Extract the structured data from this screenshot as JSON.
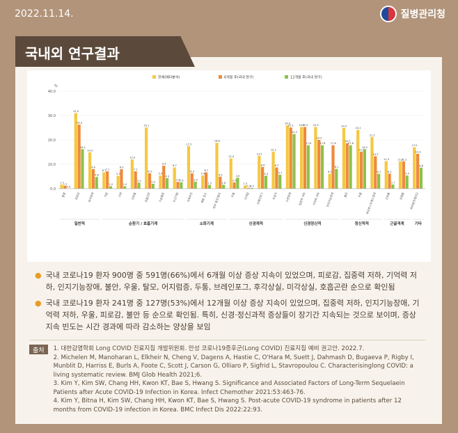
{
  "header": {
    "date": "2022.11.14.",
    "org": "질병관리청"
  },
  "title": "국내외 연구결과",
  "chart_data": {
    "type": "bar",
    "ylabel": "%",
    "ylim": [
      0,
      40
    ],
    "yticks": [
      "0.0",
      "10.0",
      "20.0",
      "30.0",
      "40.0"
    ],
    "legend": [
      "전체(메타분석)",
      "6개월 후(국내 연구)",
      "12개월 후(국내 연구)"
    ],
    "colors": [
      "#f5c842",
      "#ee8a3a",
      "#8bc34a"
    ],
    "categories": [
      "발열",
      "피로감",
      "미각장애",
      "기침",
      "가래",
      "인후통",
      "호흡곤란",
      "가슴통증",
      "두근거림",
      "식욕부진",
      "체중 감소",
      "피부 발진/탈모",
      "두통",
      "어지럼",
      "브레인포그",
      "무감각",
      "수면장애",
      "집중력 저하",
      "기억력 저하",
      "인지기능장애",
      "불안",
      "우울",
      "외상후스트레스장애",
      "근육통",
      "관절통",
      "피부발진/탈모2"
    ],
    "series": [
      {
        "name": "전체(메타분석)",
        "values": [
          1.7,
          31.0,
          14.9,
          6.7,
          5.3,
          12.0,
          25.1,
          5.4,
          8.7,
          17.5,
          5.4,
          18.8,
          12.4,
          1.3,
          13.5,
          15.2,
          26.0,
          25.3,
          25.3,
          6.1,
          24.9,
          24.1,
          21.2,
          11.3,
          11.2,
          17.0
        ]
      },
      {
        "name": "6개월 후(국내 연구)",
        "values": [
          1.2,
          26.3,
          8.0,
          7.1,
          8.0,
          7.1,
          6.3,
          9.4,
          2.8,
          6.3,
          6.7,
          4.9,
          2.6,
          0.3,
          8.9,
          8.7,
          25.1,
          25.3,
          20.0,
          17.8,
          18.7,
          15.2,
          13.3,
          6.2,
          11.2,
          14.3
        ]
      },
      {
        "name": "12개월 후(국내 연구)",
        "values": [
          0.0,
          16.2,
          4.8,
          1.0,
          1.0,
          2.5,
          2.0,
          4.3,
          2.6,
          2.9,
          1.5,
          1.6,
          4.5,
          0.3,
          5.3,
          5.7,
          22.4,
          17.8,
          17.8,
          8.1,
          17.8,
          16.2,
          6.1,
          1.7,
          5.4,
          8.6
        ]
      }
    ],
    "groups": [
      "일반적",
      "순환기 / 호흡기계",
      "소화기계",
      "신경계적",
      "신경정신적",
      "정신적적",
      "근골격계",
      "기타"
    ]
  },
  "bullets": [
    "국내 코로나19 환자 900명 중 591명(66%)에서 6개월 이상 증상 지속이 있었으며, 피로감, 집중력 저하, 기억력 저하, 인지기능장애, 불안, 우울, 탈모, 어지럼증, 두통, 브레인포그, 후각상실, 미각상실, 호흡곤란 순으로 확인됨",
    "국내 코로나19 환자 241명 중 127명(53%)에서 12개월 이상 증상 지속이 있었으며, 집중력 저하, 인지기능장애, 기억력 저하, 우울, 피로감, 불안 등 순으로 확인됨. 특히, 신경·정신과적 증상들이 장기간 지속되는 것으로 보이며, 증상 지속 빈도는 시간 경과에 따라 감소하는 양상을 보임"
  ],
  "refs": {
    "label": "출처",
    "items": [
      "1. 대한감염학회 Long COVID 진료지침 개발위원회. 만성 코로나19증후군(Long COVID) 진료지침 예비 권고안. 2022.7.",
      "2. Michelen M, Manoharan L, Elkheir N, Cheng V, Dagens A, Hastie C, O'Hara M, Suett J, Dahmash D, Bugaeva P, Rigby I, Munblit D, Harriss E, Burls A, Foote C, Scott J, Carson G, Olliaro P, Sigfrid L, Stavropoulou C. Characterisinglong COVID: a living systematic review. BMJ Glob Health 2021;6.",
      "3. Kim Y, Kim SW, Chang HH, Kwon KT, Bae S, Hwang S. Significance and Associated Factors of Long-Term Sequelaein Patients after Acute COVID-19 Infection in Korea. Infect Chemother 2021:53:463-76.",
      "4. Kim Y, Bitna H, Kim SW, Chang HH, Kwon KT, Bae S, Hwang S. Post-acute COVID-19 syndrome in patients after 12 months from COVID-19 infection in Korea. BMC Infect Dis 2022:22:93."
    ]
  }
}
